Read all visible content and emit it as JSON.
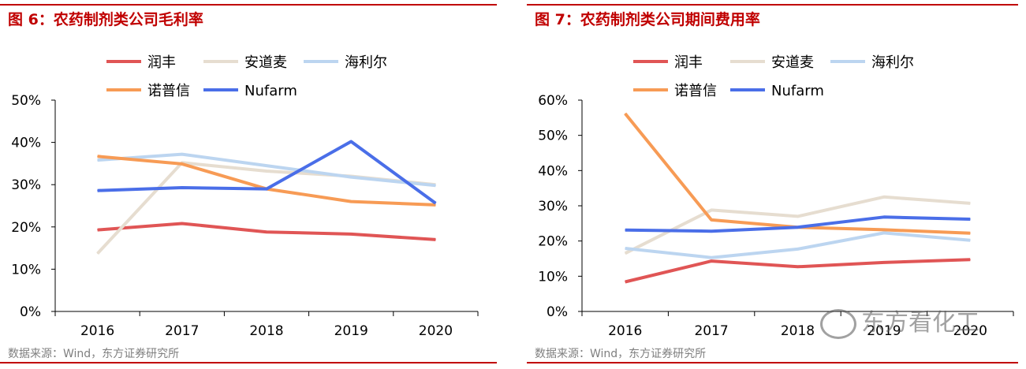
{
  "panels": [
    {
      "title": "图 6：农药制剂类公司毛利率",
      "source": "数据来源：Wind，东方证券研究所"
    },
    {
      "title": "图 7：农药制剂类公司期间费用率",
      "source": "数据来源：Wind，东方证券研究所"
    }
  ],
  "watermark": "东方看化工",
  "colors": {
    "润丰": "#e05555",
    "安道麦": "#e6ddd0",
    "海利尔": "#bcd5f0",
    "诺普信": "#f79b55",
    "Nufarm": "#4a6ee8",
    "accent": "#c00000"
  },
  "chart_data": [
    {
      "type": "line",
      "title": "图 6：农药制剂类公司毛利率",
      "xlabel": "",
      "ylabel": "",
      "categories": [
        "2016",
        "2017",
        "2018",
        "2019",
        "2020"
      ],
      "ylim": [
        0,
        0.5
      ],
      "yticks": [
        "0%",
        "10%",
        "20%",
        "30%",
        "40%",
        "50%"
      ],
      "grid": false,
      "legend": "top",
      "series": [
        {
          "name": "润丰",
          "values": [
            0.193,
            0.208,
            0.188,
            0.183,
            0.17
          ]
        },
        {
          "name": "安道麦",
          "values": [
            0.137,
            0.352,
            0.332,
            0.32,
            0.3
          ]
        },
        {
          "name": "海利尔",
          "values": [
            0.358,
            0.372,
            0.345,
            0.318,
            0.298
          ]
        },
        {
          "name": "诺普信",
          "values": [
            0.367,
            0.349,
            0.29,
            0.26,
            0.252
          ]
        },
        {
          "name": "Nufarm",
          "values": [
            0.286,
            0.293,
            0.29,
            0.402,
            0.256
          ]
        }
      ]
    },
    {
      "type": "line",
      "title": "图 7：农药制剂类公司期间费用率",
      "xlabel": "",
      "ylabel": "",
      "categories": [
        "2016",
        "2017",
        "2018",
        "2019",
        "2020"
      ],
      "ylim": [
        0,
        0.6
      ],
      "yticks": [
        "0%",
        "10%",
        "20%",
        "30%",
        "40%",
        "50%",
        "60%"
      ],
      "grid": false,
      "legend": "top",
      "series": [
        {
          "name": "润丰",
          "values": [
            0.084,
            0.143,
            0.127,
            0.139,
            0.147
          ]
        },
        {
          "name": "安道麦",
          "values": [
            0.165,
            0.288,
            0.27,
            0.325,
            0.307
          ]
        },
        {
          "name": "海利尔",
          "values": [
            0.179,
            0.153,
            0.177,
            0.223,
            0.202
          ]
        },
        {
          "name": "诺普信",
          "values": [
            0.562,
            0.26,
            0.239,
            0.232,
            0.222
          ]
        },
        {
          "name": "Nufarm",
          "values": [
            0.231,
            0.228,
            0.239,
            0.268,
            0.262
          ]
        }
      ]
    }
  ]
}
